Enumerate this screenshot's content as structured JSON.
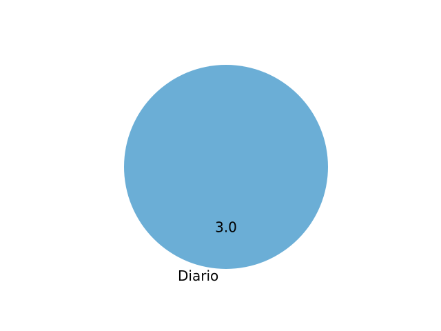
{
  "chart_data": {
    "type": "pie",
    "labels": [
      "Diario"
    ],
    "values": [
      3.0
    ],
    "value_labels": [
      "3.0"
    ],
    "colors": [
      "#6baed6"
    ],
    "title": "",
    "legend": "none"
  }
}
